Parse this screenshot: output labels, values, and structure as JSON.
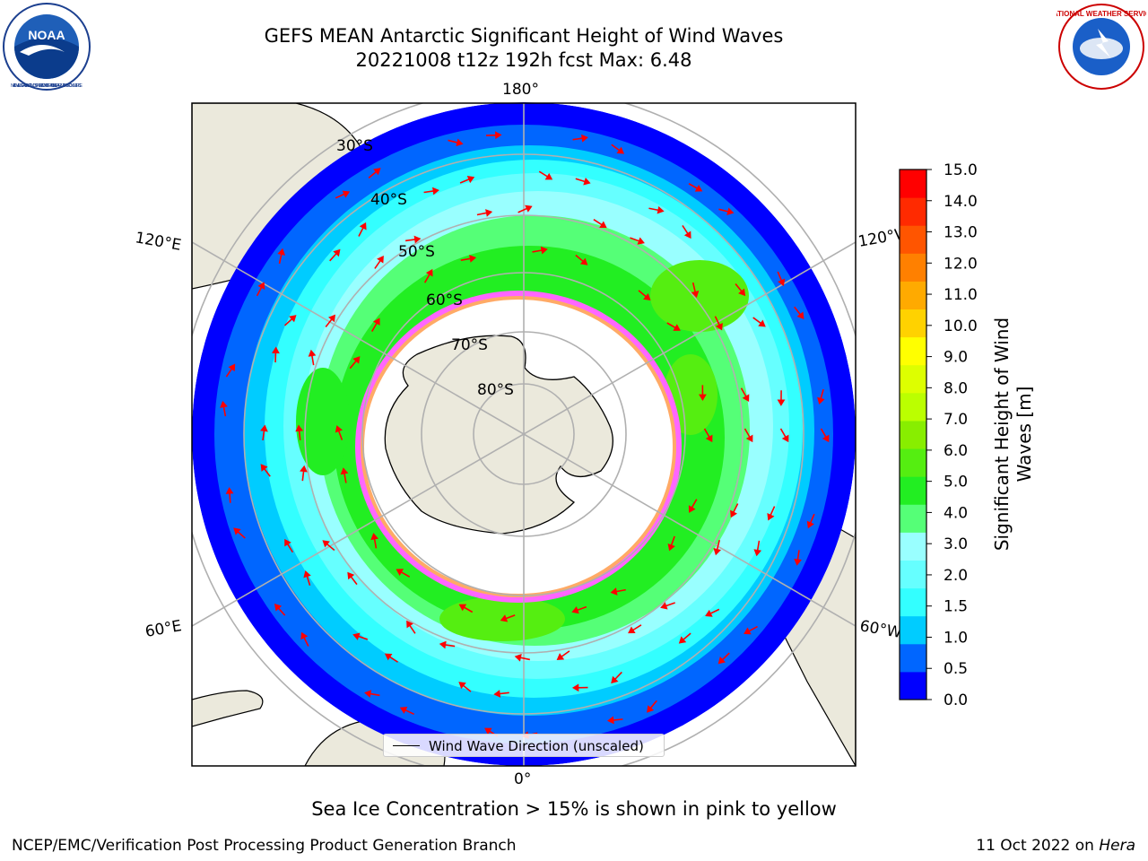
{
  "header": {
    "title_line1": "GEFS MEAN Antarctic Significant Height of Wind Waves",
    "title_line2": "20221008 t12z 192h fcst   Max: 6.48"
  },
  "logos": {
    "left": "NOAA",
    "left_ring": "NATIONAL OCEANIC AND ATMOSPHERIC ADMINISTRATION · U.S. DEPARTMENT OF COMMERCE",
    "right_ring": "NATIONAL WEATHER SERVICE"
  },
  "map": {
    "projection": "south-polar-stereographic",
    "latitude_labels": [
      "30°S",
      "40°S",
      "50°S",
      "60°S",
      "70°S",
      "80°S"
    ],
    "longitude_labels": {
      "top": "180°",
      "bottom": "0°",
      "upper_left": "120°E",
      "upper_right": "120°W",
      "lower_left": "60°E",
      "lower_right": "60°W"
    },
    "legend": "Wind Wave Direction (unscaled)",
    "arrow_color": "#ff0000"
  },
  "colorbar": {
    "label_line1": "Significant Height of Wind",
    "label_line2": "Waves [m]",
    "ticks": [
      "0.0",
      "0.5",
      "1.0",
      "1.5",
      "2.0",
      "3.0",
      "4.0",
      "5.0",
      "6.0",
      "7.0",
      "8.0",
      "9.0",
      "10.0",
      "11.0",
      "12.0",
      "13.0",
      "14.0",
      "15.0"
    ],
    "colors": [
      "#0000ff",
      "#0066ff",
      "#00ccff",
      "#33ffff",
      "#66ffff",
      "#99ffff",
      "#55ff77",
      "#22ee22",
      "#55ee11",
      "#88ee00",
      "#bbff00",
      "#ddff00",
      "#ffff00",
      "#ffd200",
      "#ffaa00",
      "#ff8000",
      "#ff5500",
      "#ff2a00",
      "#ff0000"
    ]
  },
  "caption": "Sea Ice Concentration > 15% is shown in pink to yellow",
  "footer": {
    "left": "NCEP/EMC/Verification Post Processing Product Generation Branch",
    "right_date": "11 Oct 2022 on ",
    "right_machine": "Hera"
  }
}
